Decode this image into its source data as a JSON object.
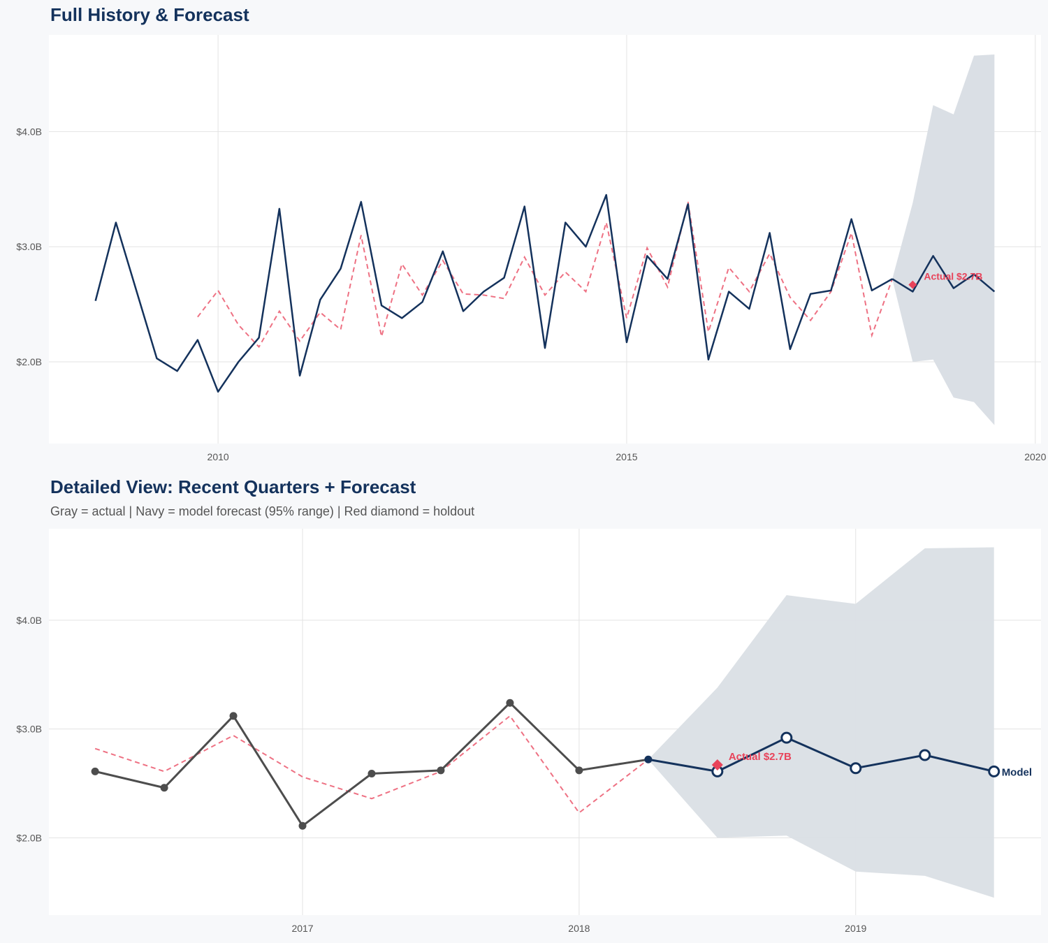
{
  "chart_data": [
    {
      "type": "line",
      "title": "Full History & Forecast",
      "xlim": [
        2007.93,
        2020.07
      ],
      "ylim": [
        1.29,
        4.84
      ],
      "x_ticks": [
        2010,
        2015,
        2020
      ],
      "x_tick_labels": [
        "2010",
        "2015",
        "2020"
      ],
      "y_ticks": [
        2,
        3,
        4
      ],
      "y_tick_labels": [
        "$2.0B",
        "$3.0B",
        "$4.0B"
      ],
      "grid": true,
      "actual": {
        "x_start": 2008.5,
        "step": 0.25,
        "values": [
          2.53,
          3.21,
          2.62,
          2.03,
          1.92,
          2.19,
          1.74,
          2.0,
          2.21,
          3.33,
          1.88,
          2.54,
          2.81,
          3.39,
          2.49,
          2.38,
          2.52,
          2.96,
          2.44,
          2.61,
          2.73,
          3.35,
          2.12,
          3.21,
          3.0,
          3.45,
          2.17,
          2.92,
          2.72,
          3.37,
          2.02,
          2.61,
          2.46,
          3.12,
          2.11,
          2.59,
          2.62,
          3.24,
          2.62,
          2.72
        ]
      },
      "fitted": {
        "x_start": 2009.75,
        "step": 0.25,
        "values": [
          2.39,
          2.62,
          2.32,
          2.13,
          2.44,
          2.18,
          2.43,
          2.28,
          3.1,
          2.22,
          2.85,
          2.58,
          2.88,
          2.59,
          2.58,
          2.55,
          2.91,
          2.58,
          2.78,
          2.61,
          3.21,
          2.38,
          2.99,
          2.65,
          3.39,
          2.26,
          2.82,
          2.61,
          2.94,
          2.56,
          2.36,
          2.61,
          3.12,
          2.23,
          2.72
        ]
      },
      "forecast": {
        "x": [
          2018.25,
          2018.5,
          2018.75,
          2019.0,
          2019.25,
          2019.5
        ],
        "values": [
          2.72,
          2.61,
          2.92,
          2.64,
          2.76,
          2.61
        ],
        "upper": [
          2.72,
          3.38,
          4.23,
          4.15,
          4.66,
          4.67
        ],
        "lower": [
          2.72,
          2.0,
          2.02,
          1.69,
          1.65,
          1.45
        ]
      },
      "holdout": {
        "x": 2018.5,
        "value": 2.67,
        "label": "Actual $2.7B"
      }
    },
    {
      "type": "line",
      "title": "Detailed View: Recent Quarters + Forecast",
      "subtitle": "Gray = actual  |  Navy = model forecast (95% range)  |  Red diamond = holdout",
      "xlim": [
        2016.083,
        2019.67
      ],
      "ylim": [
        1.29,
        4.84
      ],
      "x_ticks": [
        2017,
        2018,
        2019
      ],
      "x_tick_labels": [
        "2017",
        "2018",
        "2019"
      ],
      "y_ticks": [
        2,
        3,
        4
      ],
      "y_tick_labels": [
        "$2.0B",
        "$3.0B",
        "$4.0B"
      ],
      "grid": true,
      "actual": {
        "x_start": 2016.25,
        "step": 0.25,
        "values": [
          2.61,
          2.46,
          3.12,
          2.11,
          2.59,
          2.62,
          3.24,
          2.62,
          2.72
        ]
      },
      "fitted": {
        "x_start": 2016.25,
        "step": 0.25,
        "values": [
          2.82,
          2.61,
          2.94,
          2.56,
          2.36,
          2.61,
          3.12,
          2.23,
          2.72
        ]
      },
      "forecast": {
        "x": [
          2018.25,
          2018.5,
          2018.75,
          2019.0,
          2019.25,
          2019.5
        ],
        "values": [
          2.72,
          2.61,
          2.92,
          2.64,
          2.76,
          2.61
        ],
        "upper": [
          2.72,
          3.38,
          4.23,
          4.15,
          4.66,
          4.67
        ],
        "lower": [
          2.72,
          2.0,
          2.02,
          1.69,
          1.65,
          1.45
        ],
        "label": "Model"
      },
      "holdout": {
        "x": 2018.5,
        "value": 2.67,
        "label": "Actual $2.7B"
      }
    }
  ],
  "colors": {
    "actual_history": "#14325c",
    "actual_detail": "#4d4d4d",
    "forecast": "#14325c",
    "fitted": "#ee7183",
    "band": "#dadfe5",
    "holdout": "#e8435a",
    "title": "#14325c"
  }
}
